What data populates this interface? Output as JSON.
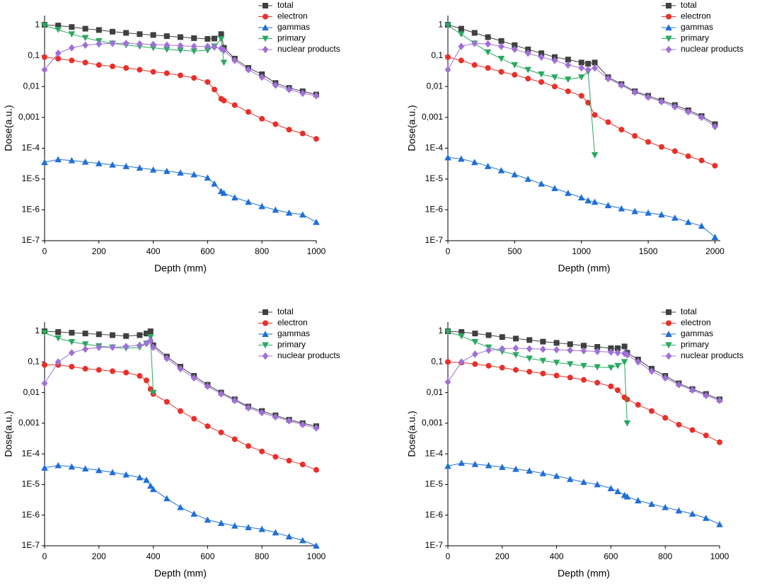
{
  "chart_data": [
    {
      "type": "line",
      "yscale": "log",
      "xlabel": "Depth (mm)",
      "ylabel": "Dose(a.u.)",
      "xlim": [
        0,
        1000
      ],
      "xticks": [
        0,
        200,
        400,
        600,
        800,
        1000
      ],
      "ylim": [
        1e-07,
        2
      ],
      "yticks": [
        {
          "value": 1e-07,
          "label": "1E-7"
        },
        {
          "value": 1e-06,
          "label": "1E-6"
        },
        {
          "value": 1e-05,
          "label": "1E-5"
        },
        {
          "value": 0.0001,
          "label": "1E-4"
        },
        {
          "value": 0.001,
          "label": "0,001"
        },
        {
          "value": 0.01,
          "label": "0,01"
        },
        {
          "value": 0.1,
          "label": "0,1"
        },
        1
      ],
      "x": [
        0,
        50,
        100,
        150,
        200,
        250,
        300,
        350,
        400,
        450,
        500,
        550,
        600,
        625,
        650,
        660,
        700,
        750,
        800,
        850,
        900,
        950,
        1000
      ],
      "series": [
        {
          "name": "total",
          "color": "#404040",
          "marker": "square",
          "values": [
            1,
            0.95,
            0.85,
            0.75,
            0.68,
            0.6,
            0.55,
            0.5,
            0.47,
            0.43,
            0.4,
            0.37,
            0.35,
            0.36,
            0.5,
            0.18,
            0.08,
            0.04,
            0.025,
            0.013,
            0.009,
            0.007,
            0.0055
          ]
        },
        {
          "name": "electron",
          "color": "#e8302a",
          "marker": "circle",
          "values": [
            0.09,
            0.08,
            0.07,
            0.06,
            0.05,
            0.045,
            0.04,
            0.035,
            0.03,
            0.027,
            0.023,
            0.019,
            0.014,
            0.008,
            0.004,
            0.0035,
            0.0025,
            0.0015,
            0.0009,
            0.0006,
            0.0004,
            0.0003,
            0.0002
          ]
        },
        {
          "name": "gammas",
          "color": "#1f6fd6",
          "marker": "triangle-up",
          "values": [
            3.5e-05,
            4.3e-05,
            4e-05,
            3.6e-05,
            3.2e-05,
            2.9e-05,
            2.6e-05,
            2.3e-05,
            2e-05,
            1.8e-05,
            1.6e-05,
            1.4e-05,
            1.1e-05,
            7e-06,
            4e-06,
            3.5e-06,
            2.5e-06,
            1.8e-06,
            1.3e-06,
            1e-06,
            8e-07,
            7e-07,
            4e-07
          ]
        },
        {
          "name": "primary",
          "color": "#2aa860",
          "marker": "triangle-down",
          "values": [
            0.95,
            0.7,
            0.5,
            0.38,
            0.3,
            0.25,
            0.22,
            0.2,
            0.18,
            0.16,
            0.15,
            0.14,
            0.15,
            0.2,
            0.35,
            0.06,
            null,
            null,
            null,
            null,
            null,
            null,
            null
          ]
        },
        {
          "name": "nuclear products",
          "color": "#a070d8",
          "marker": "diamond",
          "values": [
            0.035,
            0.12,
            0.18,
            0.22,
            0.24,
            0.25,
            0.25,
            0.24,
            0.23,
            0.22,
            0.21,
            0.2,
            0.2,
            0.19,
            0.17,
            0.15,
            0.07,
            0.035,
            0.02,
            0.011,
            0.008,
            0.006,
            0.005
          ]
        }
      ]
    },
    {
      "type": "line",
      "yscale": "log",
      "xlabel": "Depth (mm)",
      "ylabel": "Dose(a.u.)",
      "xlim": [
        0,
        2040
      ],
      "xticks": [
        0,
        500,
        1000,
        1500,
        2000
      ],
      "ylim": [
        1e-07,
        2
      ],
      "yticks": [
        {
          "value": 1e-07,
          "label": "1E-7"
        },
        {
          "value": 1e-06,
          "label": "1E-6"
        },
        {
          "value": 1e-05,
          "label": "1E-5"
        },
        {
          "value": 0.0001,
          "label": "1E-4"
        },
        {
          "value": 0.001,
          "label": "0,001"
        },
        {
          "value": 0.01,
          "label": "0,01"
        },
        {
          "value": 0.1,
          "label": "0,1"
        },
        1
      ],
      "x": [
        0,
        100,
        200,
        300,
        400,
        500,
        600,
        700,
        800,
        900,
        1000,
        1050,
        1100,
        1200,
        1300,
        1400,
        1500,
        1600,
        1700,
        1800,
        1900,
        2000
      ],
      "series": [
        {
          "name": "total",
          "color": "#404040",
          "marker": "square",
          "values": [
            1,
            0.75,
            0.55,
            0.4,
            0.3,
            0.22,
            0.16,
            0.12,
            0.09,
            0.075,
            0.06,
            0.055,
            0.06,
            0.02,
            0.012,
            0.007,
            0.005,
            0.0035,
            0.0025,
            0.0017,
            0.0011,
            0.0006
          ]
        },
        {
          "name": "electron",
          "color": "#e8302a",
          "marker": "circle",
          "values": [
            0.09,
            0.07,
            0.05,
            0.04,
            0.03,
            0.024,
            0.018,
            0.014,
            0.01,
            0.007,
            0.005,
            0.003,
            0.0012,
            0.0007,
            0.0004,
            0.00025,
            0.00016,
            0.00011,
            8e-05,
            5.5e-05,
            4e-05,
            2.7e-05
          ]
        },
        {
          "name": "gammas",
          "color": "#1f6fd6",
          "marker": "triangle-up",
          "values": [
            5e-05,
            4.5e-05,
            3.5e-05,
            2.6e-05,
            1.9e-05,
            1.4e-05,
            1e-05,
            7e-06,
            5e-06,
            3.5e-06,
            2.5e-06,
            2e-06,
            1.8e-06,
            1.4e-06,
            1.1e-06,
            9e-07,
            8e-07,
            7e-07,
            5.5e-07,
            4e-07,
            3e-07,
            1.3e-07
          ]
        },
        {
          "name": "primary",
          "color": "#2aa860",
          "marker": "triangle-down",
          "values": [
            0.95,
            0.5,
            0.25,
            0.13,
            0.08,
            0.05,
            0.035,
            0.025,
            0.02,
            0.017,
            0.02,
            0.03,
            6e-05,
            null,
            null,
            null,
            null,
            null,
            null,
            null,
            null,
            null
          ]
        },
        {
          "name": "nuclear products",
          "color": "#a070d8",
          "marker": "diamond",
          "values": [
            0.035,
            0.2,
            0.25,
            0.24,
            0.2,
            0.16,
            0.12,
            0.09,
            0.07,
            0.05,
            0.04,
            0.035,
            0.04,
            0.018,
            0.011,
            0.0065,
            0.0045,
            0.0032,
            0.0022,
            0.0015,
            0.001,
            0.0005
          ]
        }
      ]
    },
    {
      "type": "line",
      "yscale": "log",
      "xlabel": "Depth (mm)",
      "ylabel": "Dose(a.u.)",
      "xlim": [
        0,
        1000
      ],
      "xticks": [
        0,
        200,
        400,
        600,
        800,
        1000
      ],
      "ylim": [
        1e-07,
        2
      ],
      "yticks": [
        {
          "value": 1e-07,
          "label": "1E-7"
        },
        {
          "value": 1e-06,
          "label": "1E-6"
        },
        {
          "value": 1e-05,
          "label": "1E-5"
        },
        {
          "value": 0.0001,
          "label": "1E-4"
        },
        {
          "value": 0.001,
          "label": "0,001"
        },
        {
          "value": 0.01,
          "label": "0,01"
        },
        {
          "value": 0.1,
          "label": "0,1"
        },
        1
      ],
      "x": [
        0,
        50,
        100,
        150,
        200,
        250,
        300,
        350,
        375,
        390,
        400,
        450,
        500,
        550,
        600,
        650,
        700,
        750,
        800,
        850,
        900,
        950,
        1000
      ],
      "series": [
        {
          "name": "total",
          "color": "#404040",
          "marker": "square",
          "values": [
            1,
            0.95,
            0.9,
            0.85,
            0.8,
            0.75,
            0.7,
            0.75,
            0.85,
            1,
            0.35,
            0.15,
            0.07,
            0.035,
            0.018,
            0.01,
            0.006,
            0.0035,
            0.0025,
            0.0018,
            0.0013,
            0.001,
            0.0008
          ]
        },
        {
          "name": "electron",
          "color": "#e8302a",
          "marker": "circle",
          "values": [
            0.08,
            0.08,
            0.07,
            0.06,
            0.055,
            0.05,
            0.045,
            0.035,
            0.025,
            0.013,
            0.009,
            0.005,
            0.0025,
            0.0014,
            0.0008,
            0.0005,
            0.0003,
            0.00018,
            0.00012,
            8e-05,
            6e-05,
            4.5e-05,
            3e-05
          ]
        },
        {
          "name": "gammas",
          "color": "#1f6fd6",
          "marker": "triangle-up",
          "values": [
            3.5e-05,
            4.2e-05,
            3.8e-05,
            3.3e-05,
            2.9e-05,
            2.5e-05,
            2.1e-05,
            1.7e-05,
            1.4e-05,
            9e-06,
            7e-06,
            3.5e-06,
            1.8e-06,
            1.1e-06,
            7e-07,
            5.5e-07,
            4.5e-07,
            4e-07,
            3.5e-07,
            2.7e-07,
            2e-07,
            1.5e-07,
            1e-07
          ]
        },
        {
          "name": "primary",
          "color": "#2aa860",
          "marker": "triangle-down",
          "values": [
            0.9,
            0.6,
            0.45,
            0.38,
            0.33,
            0.3,
            0.28,
            0.3,
            0.4,
            0.65,
            0.01,
            null,
            null,
            null,
            null,
            null,
            null,
            null,
            null,
            null,
            null,
            null,
            null
          ]
        },
        {
          "name": "nuclear products",
          "color": "#a070d8",
          "marker": "diamond",
          "values": [
            0.02,
            0.1,
            0.2,
            0.26,
            0.3,
            0.3,
            0.32,
            0.35,
            0.4,
            0.5,
            0.3,
            0.13,
            0.06,
            0.03,
            0.016,
            0.009,
            0.0055,
            0.0032,
            0.0022,
            0.0016,
            0.0012,
            0.0009,
            0.0007
          ]
        }
      ]
    },
    {
      "type": "line",
      "yscale": "log",
      "xlabel": "Depth (mm)",
      "ylabel": "Dose(a.u.)",
      "xlim": [
        0,
        1000
      ],
      "xticks": [
        0,
        200,
        400,
        600,
        800,
        1000
      ],
      "ylim": [
        1e-07,
        2
      ],
      "yticks": [
        {
          "value": 1e-07,
          "label": "1E-7"
        },
        {
          "value": 1e-06,
          "label": "1E-6"
        },
        {
          "value": 1e-05,
          "label": "1E-5"
        },
        {
          "value": 0.0001,
          "label": "1E-4"
        },
        {
          "value": 0.001,
          "label": "0,001"
        },
        {
          "value": 0.01,
          "label": "0,01"
        },
        {
          "value": 0.1,
          "label": "0,1"
        },
        1
      ],
      "x": [
        0,
        50,
        100,
        150,
        200,
        250,
        300,
        350,
        400,
        450,
        500,
        550,
        600,
        625,
        650,
        660,
        700,
        750,
        800,
        850,
        900,
        950,
        1000
      ],
      "series": [
        {
          "name": "total",
          "color": "#404040",
          "marker": "square",
          "values": [
            1,
            0.95,
            0.85,
            0.75,
            0.65,
            0.58,
            0.52,
            0.46,
            0.42,
            0.38,
            0.34,
            0.31,
            0.28,
            0.28,
            0.32,
            0.2,
            0.12,
            0.06,
            0.035,
            0.02,
            0.013,
            0.009,
            0.006
          ]
        },
        {
          "name": "electron",
          "color": "#e8302a",
          "marker": "circle",
          "values": [
            0.1,
            0.095,
            0.085,
            0.075,
            0.065,
            0.055,
            0.048,
            0.042,
            0.036,
            0.031,
            0.026,
            0.021,
            0.016,
            0.012,
            0.007,
            0.006,
            0.004,
            0.0025,
            0.0015,
            0.0009,
            0.0006,
            0.0004,
            0.00024
          ]
        },
        {
          "name": "gammas",
          "color": "#1f6fd6",
          "marker": "triangle-up",
          "values": [
            4e-05,
            5e-05,
            4.6e-05,
            4.2e-05,
            3.7e-05,
            3.2e-05,
            2.8e-05,
            2.3e-05,
            1.9e-05,
            1.5e-05,
            1.2e-05,
            1e-05,
            7.5e-06,
            6e-06,
            4.5e-06,
            4e-06,
            3e-06,
            2.3e-06,
            1.8e-06,
            1.4e-06,
            1.1e-06,
            8e-07,
            5e-07
          ]
        },
        {
          "name": "primary",
          "color": "#2aa860",
          "marker": "triangle-down",
          "values": [
            0.95,
            0.7,
            0.45,
            0.3,
            0.22,
            0.17,
            0.13,
            0.11,
            0.095,
            0.085,
            0.075,
            0.068,
            0.065,
            0.075,
            0.1,
            0.001,
            null,
            null,
            null,
            null,
            null,
            null,
            null
          ]
        },
        {
          "name": "nuclear products",
          "color": "#a070d8",
          "marker": "diamond",
          "values": [
            0.022,
            0.1,
            0.18,
            0.24,
            0.27,
            0.28,
            0.27,
            0.26,
            0.25,
            0.24,
            0.23,
            0.22,
            0.21,
            0.2,
            0.19,
            0.17,
            0.1,
            0.05,
            0.03,
            0.018,
            0.012,
            0.008,
            0.0055
          ]
        }
      ]
    }
  ]
}
